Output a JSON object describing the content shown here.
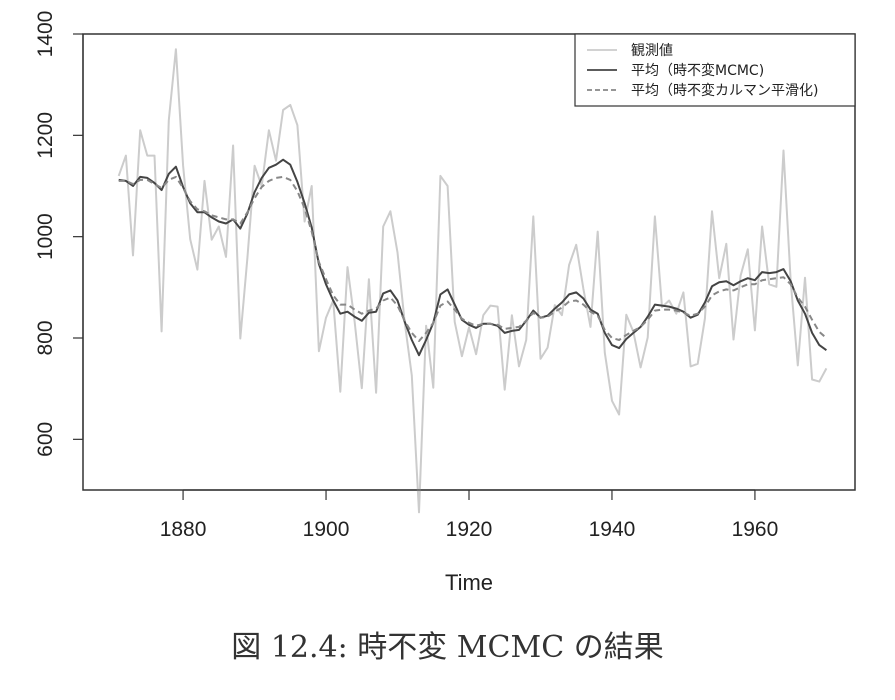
{
  "caption": "図 12.4: 時不変 MCMC の結果",
  "chart_data": {
    "type": "line",
    "xlabel": "Time",
    "ylabel": "",
    "xlim": [
      1866,
      1974
    ],
    "ylim": [
      500,
      1400
    ],
    "xticks": [
      1880,
      1900,
      1920,
      1940,
      1960
    ],
    "yticks": [
      600,
      800,
      1000,
      1200,
      1400
    ],
    "grid": false,
    "legend_position": "top-right",
    "x": [
      1871,
      1872,
      1873,
      1874,
      1875,
      1876,
      1877,
      1878,
      1879,
      1880,
      1881,
      1882,
      1883,
      1884,
      1885,
      1886,
      1887,
      1888,
      1889,
      1890,
      1891,
      1892,
      1893,
      1894,
      1895,
      1896,
      1897,
      1898,
      1899,
      1900,
      1901,
      1902,
      1903,
      1904,
      1905,
      1906,
      1907,
      1908,
      1909,
      1910,
      1911,
      1912,
      1913,
      1914,
      1915,
      1916,
      1917,
      1918,
      1919,
      1920,
      1921,
      1922,
      1923,
      1924,
      1925,
      1926,
      1927,
      1928,
      1929,
      1930,
      1931,
      1932,
      1933,
      1934,
      1935,
      1936,
      1937,
      1938,
      1939,
      1940,
      1941,
      1942,
      1943,
      1944,
      1945,
      1946,
      1947,
      1948,
      1949,
      1950,
      1951,
      1952,
      1953,
      1954,
      1955,
      1956,
      1957,
      1958,
      1959,
      1960,
      1961,
      1962,
      1963,
      1964,
      1965,
      1966,
      1967,
      1968,
      1969,
      1970
    ],
    "series": [
      {
        "name": "観測値",
        "color": "#cccccc",
        "dash": "solid",
        "values": [
          1120,
          1160,
          963,
          1210,
          1160,
          1160,
          813,
          1230,
          1370,
          1140,
          995,
          935,
          1110,
          994,
          1020,
          960,
          1180,
          799,
          958,
          1140,
          1100,
          1210,
          1150,
          1250,
          1260,
          1220,
          1030,
          1100,
          774,
          840,
          874,
          694,
          940,
          833,
          701,
          916,
          692,
          1020,
          1050,
          969,
          831,
          726,
          456,
          824,
          702,
          1120,
          1100,
          832,
          764,
          821,
          768,
          845,
          864,
          862,
          698,
          845,
          744,
          796,
          1040,
          759,
          781,
          865,
          845,
          944,
          984,
          897,
          822,
          1010,
          771,
          676,
          649,
          846,
          812,
          742,
          801,
          1040,
          861,
          874,
          848,
          890,
          744,
          749,
          838,
          1050,
          918,
          986,
          797,
          923,
          975,
          815,
          1020,
          906,
          901,
          1170,
          912,
          746,
          919,
          718,
          714,
          740
        ]
      },
      {
        "name": "平均（時不変MCMC)",
        "color": "#444444",
        "dash": "solid",
        "values": [
          1112,
          1110,
          1100,
          1118,
          1116,
          1106,
          1092,
          1124,
          1138,
          1098,
          1066,
          1048,
          1048,
          1038,
          1030,
          1026,
          1034,
          1016,
          1046,
          1088,
          1116,
          1136,
          1142,
          1152,
          1142,
          1108,
          1066,
          1018,
          946,
          906,
          874,
          848,
          852,
          842,
          834,
          850,
          852,
          888,
          894,
          874,
          832,
          796,
          766,
          796,
          830,
          886,
          896,
          866,
          836,
          826,
          820,
          828,
          828,
          824,
          810,
          814,
          816,
          834,
          854,
          840,
          844,
          858,
          870,
          886,
          890,
          878,
          856,
          848,
          810,
          786,
          780,
          798,
          810,
          822,
          842,
          866,
          864,
          862,
          858,
          852,
          840,
          846,
          870,
          902,
          910,
          912,
          904,
          912,
          918,
          914,
          930,
          928,
          930,
          936,
          912,
          874,
          848,
          810,
          786,
          776
        ]
      },
      {
        "name": "平均（時不変カルマン平滑化)",
        "color": "#888888",
        "dash": "dashed",
        "values": [
          1110,
          1110,
          1104,
          1112,
          1112,
          1104,
          1096,
          1112,
          1118,
          1096,
          1070,
          1054,
          1050,
          1042,
          1038,
          1034,
          1034,
          1026,
          1048,
          1076,
          1098,
          1110,
          1116,
          1118,
          1112,
          1090,
          1056,
          1010,
          950,
          916,
          884,
          866,
          866,
          856,
          848,
          854,
          858,
          874,
          880,
          864,
          834,
          810,
          794,
          810,
          830,
          864,
          872,
          856,
          838,
          830,
          824,
          828,
          828,
          826,
          818,
          820,
          822,
          834,
          850,
          840,
          842,
          852,
          860,
          872,
          874,
          866,
          852,
          844,
          816,
          800,
          796,
          806,
          814,
          822,
          836,
          854,
          856,
          856,
          854,
          850,
          844,
          848,
          862,
          884,
          892,
          896,
          894,
          900,
          906,
          906,
          914,
          916,
          918,
          920,
          906,
          880,
          862,
          836,
          812,
          800
        ]
      }
    ]
  }
}
